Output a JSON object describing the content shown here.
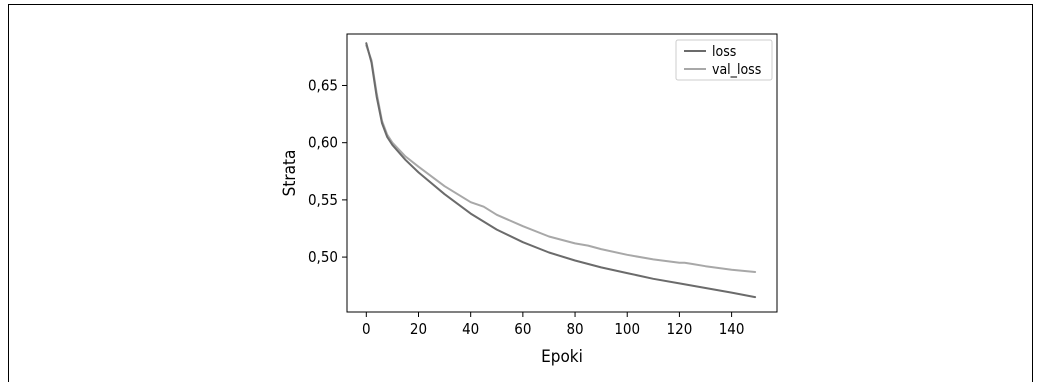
{
  "chart_data": {
    "type": "line",
    "title": "",
    "xlabel": "Epoki",
    "ylabel": "Strata",
    "xlim": [
      -7.4,
      157.4
    ],
    "ylim": [
      0.452,
      0.695
    ],
    "xticks": [
      0,
      20,
      40,
      60,
      80,
      100,
      120,
      140
    ],
    "xtick_labels": [
      "0",
      "20",
      "40",
      "60",
      "80",
      "100",
      "120",
      "140"
    ],
    "yticks": [
      0.5,
      0.55,
      0.6,
      0.65
    ],
    "ytick_labels": [
      "0,50",
      "0,55",
      "0,60",
      "0,65"
    ],
    "grid": false,
    "legend_position": "top-right",
    "series": [
      {
        "name": "loss",
        "color": "#6b6b6b",
        "x": [
          0,
          2,
          4,
          6,
          8,
          10,
          15,
          20,
          30,
          40,
          50,
          60,
          70,
          80,
          90,
          100,
          110,
          120,
          130,
          140,
          149
        ],
        "y": [
          0.687,
          0.67,
          0.64,
          0.617,
          0.605,
          0.598,
          0.585,
          0.574,
          0.555,
          0.538,
          0.524,
          0.513,
          0.504,
          0.497,
          0.491,
          0.486,
          0.481,
          0.477,
          0.473,
          0.469,
          0.465
        ]
      },
      {
        "name": "val_loss",
        "color": "#a8a8a8",
        "x": [
          0,
          2,
          4,
          6,
          8,
          10,
          15,
          20,
          30,
          40,
          45,
          50,
          60,
          70,
          80,
          85,
          90,
          100,
          110,
          120,
          122,
          125,
          130,
          140,
          149
        ],
        "y": [
          0.685,
          0.672,
          0.643,
          0.619,
          0.607,
          0.6,
          0.588,
          0.579,
          0.562,
          0.548,
          0.544,
          0.537,
          0.527,
          0.518,
          0.512,
          0.51,
          0.507,
          0.502,
          0.498,
          0.495,
          0.495,
          0.494,
          0.492,
          0.489,
          0.487
        ]
      }
    ]
  }
}
